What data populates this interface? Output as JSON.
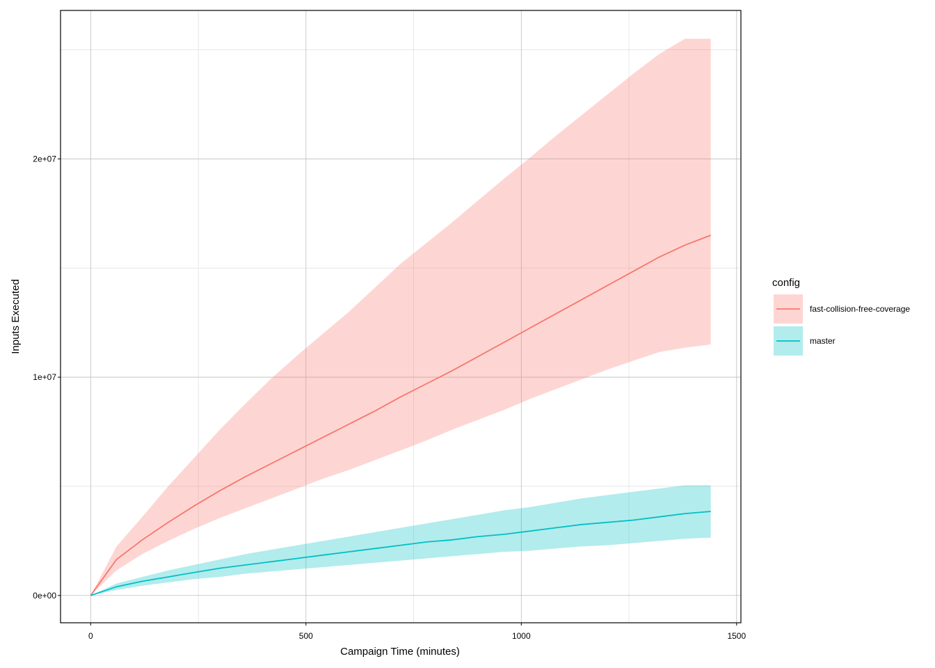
{
  "chart_data": {
    "type": "line",
    "title": "",
    "xlabel": "Campaign Time (minutes)",
    "ylabel": "Inputs Executed",
    "xlim": [
      -70,
      1510
    ],
    "ylim": [
      -1250000,
      26800000
    ],
    "x_ticks": [
      0,
      500,
      1000,
      1500
    ],
    "x_tick_labels": [
      "0",
      "500",
      "1000",
      "1500"
    ],
    "y_ticks": [
      0,
      10000000,
      20000000
    ],
    "y_tick_labels": [
      "0e+00",
      "1e+07",
      "2e+07"
    ],
    "grid": true,
    "legend": {
      "title": "config",
      "position": "right"
    },
    "series": [
      {
        "name": "fast-collision-free-coverage",
        "color": "#F8766D",
        "band_color": "#F8766D",
        "x": [
          0,
          60,
          120,
          180,
          240,
          300,
          360,
          420,
          480,
          540,
          600,
          660,
          720,
          780,
          840,
          900,
          960,
          1020,
          1080,
          1140,
          1200,
          1260,
          1320,
          1380,
          1440
        ],
        "y": [
          0,
          1650000,
          2550000,
          3350000,
          4100000,
          4800000,
          5450000,
          6050000,
          6650000,
          7250000,
          7850000,
          8450000,
          9100000,
          9700000,
          10300000,
          10950000,
          11600000,
          12250000,
          12900000,
          13550000,
          14200000,
          14850000,
          15500000,
          16050000,
          16500000
        ],
        "lower": [
          0,
          1150000,
          1900000,
          2500000,
          3050000,
          3550000,
          4000000,
          4450000,
          4900000,
          5350000,
          5750000,
          6200000,
          6650000,
          7100000,
          7600000,
          8050000,
          8500000,
          9000000,
          9450000,
          9900000,
          10350000,
          10750000,
          11150000,
          11350000,
          11500000
        ],
        "upper": [
          0,
          2250000,
          3600000,
          5000000,
          6300000,
          7600000,
          8800000,
          9950000,
          11000000,
          12000000,
          13000000,
          14100000,
          15200000,
          16150000,
          17100000,
          18100000,
          19100000,
          20050000,
          21050000,
          22000000,
          22950000,
          23900000,
          24800000,
          25500000,
          25500000
        ]
      },
      {
        "name": "master",
        "color": "#00BFC4",
        "band_color": "#00BFC4",
        "x": [
          0,
          60,
          120,
          180,
          240,
          300,
          360,
          420,
          480,
          540,
          600,
          660,
          720,
          780,
          840,
          900,
          960,
          1020,
          1080,
          1140,
          1200,
          1260,
          1320,
          1380,
          1440
        ],
        "y": [
          0,
          400000,
          650000,
          850000,
          1050000,
          1250000,
          1400000,
          1550000,
          1700000,
          1850000,
          2000000,
          2150000,
          2300000,
          2450000,
          2550000,
          2700000,
          2800000,
          2950000,
          3100000,
          3250000,
          3350000,
          3450000,
          3600000,
          3750000,
          3850000
        ],
        "lower": [
          0,
          250000,
          450000,
          600000,
          750000,
          850000,
          1000000,
          1100000,
          1200000,
          1300000,
          1400000,
          1500000,
          1600000,
          1700000,
          1800000,
          1900000,
          2000000,
          2050000,
          2150000,
          2250000,
          2300000,
          2400000,
          2500000,
          2600000,
          2650000
        ],
        "upper": [
          0,
          550000,
          850000,
          1150000,
          1400000,
          1650000,
          1900000,
          2100000,
          2300000,
          2500000,
          2700000,
          2900000,
          3100000,
          3300000,
          3500000,
          3700000,
          3900000,
          4050000,
          4250000,
          4450000,
          4600000,
          4750000,
          4900000,
          5050000,
          5050000
        ]
      }
    ]
  }
}
